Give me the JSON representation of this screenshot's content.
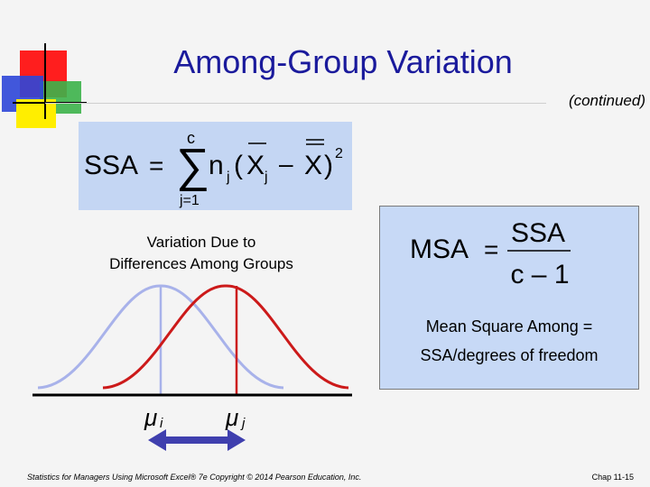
{
  "slide": {
    "title": "Among-Group Variation",
    "continued": "(continued)",
    "formula_ssa": {
      "lhs": "SSA",
      "eq": "=",
      "sum_top": "c",
      "sum_bottom": "j=1",
      "n": "n",
      "sub_j": "j",
      "open_paren": "(",
      "xbar": "X",
      "minus": "–",
      "xdoublebar": "X",
      "close_paren": ")",
      "exponent": "2"
    },
    "variation_label_line1": "Variation Due to",
    "variation_label_line2": "Differences Among Groups",
    "formula_msa": {
      "lhs": "MSA",
      "eq": "=",
      "numerator": "SSA",
      "denominator": "c – 1"
    },
    "msa_description_line1": "Mean Square Among =",
    "msa_description_line2": "SSA/degrees of freedom",
    "mu": "μ",
    "mu_i_sub": "i",
    "mu_j_sub": "j",
    "footer": "Statistics for Managers Using Microsoft Excel® 7e Copyright © 2014 Pearson Education, Inc.",
    "chapter": "Chap 11-15",
    "colors": {
      "title": "#1a1a9c",
      "curve_i": "#a8b2ea",
      "curve_j": "#cc1a1a",
      "arrow": "#3f3fae"
    }
  }
}
